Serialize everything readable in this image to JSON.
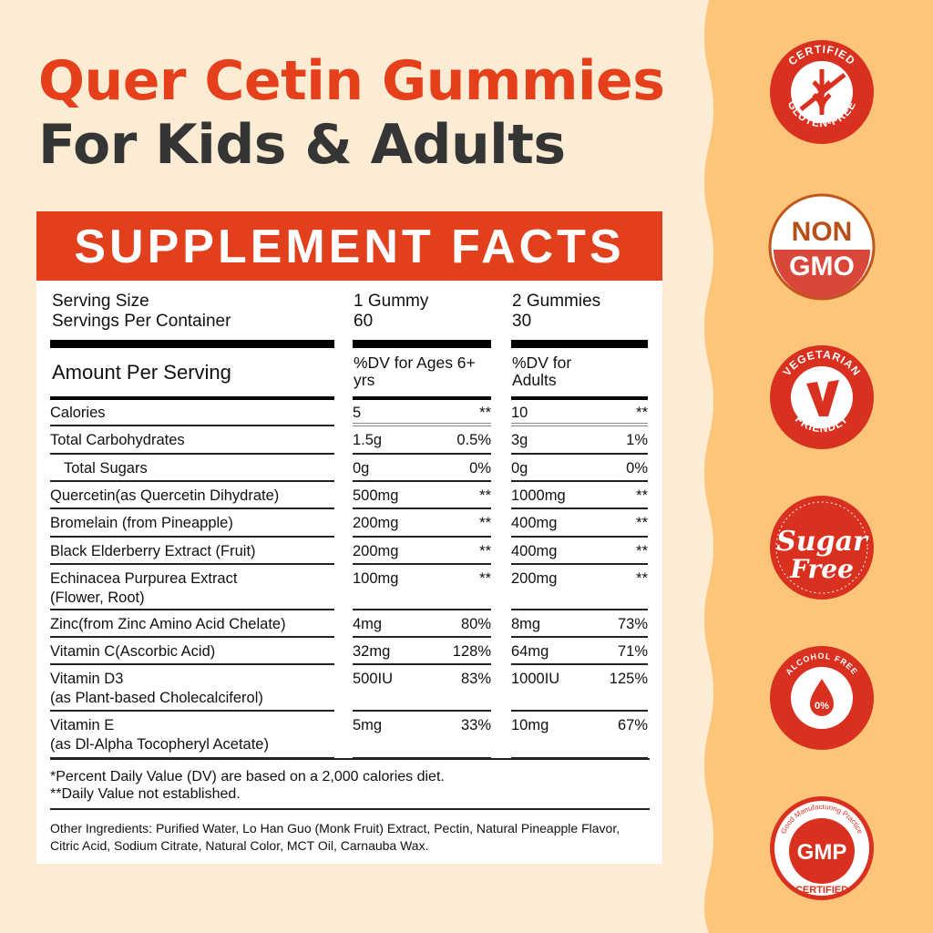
{
  "colors": {
    "accent": "#e2401d",
    "cream": "#fdecd4",
    "orange": "#fdc57a",
    "dark": "#353535"
  },
  "title": {
    "line1": "Quer Cetin Gummies",
    "line2": "For Kids & Adults"
  },
  "facts": {
    "header": "SUPPLEMENT FACTS",
    "serving_size_label": "Serving Size",
    "servings_label": "Servings Per Container",
    "kids_serving": "1 Gummy",
    "kids_servings": "60",
    "adult_serving": "2 Gummies",
    "adult_servings": "30",
    "amount_label": "Amount Per Serving",
    "kids_dv_label": "%DV for Ages 6+ yrs",
    "adult_dv_label": "%DV for Adults",
    "rows": [
      {
        "name": "Calories",
        "k": "5",
        "kdv": "**",
        "a": "10",
        "adv": "**"
      },
      {
        "name": "Total Carbohydrates",
        "k": "1.5g",
        "kdv": "0.5%",
        "a": "3g",
        "adv": "1%"
      },
      {
        "name": "Total Sugars",
        "k": "0g",
        "kdv": "0%",
        "a": "0g",
        "adv": "0%"
      },
      {
        "name": "Quercetin(as Quercetin Dihydrate)",
        "k": "500mg",
        "kdv": "**",
        "a": "1000mg",
        "adv": "**"
      },
      {
        "name": "Bromelain (from Pineapple)",
        "k": "200mg",
        "kdv": "**",
        "a": "400mg",
        "adv": "**"
      },
      {
        "name": "Black Elderberry Extract (Fruit)",
        "k": "200mg",
        "kdv": "**",
        "a": "400mg",
        "adv": "**"
      },
      {
        "name": "Echinacea Purpurea Extract",
        "sub": "(Flower, Root)",
        "k": "100mg",
        "kdv": "**",
        "a": "200mg",
        "adv": "**"
      },
      {
        "name": "Zinc(from Zinc Amino Acid Chelate)",
        "k": "4mg",
        "kdv": "80%",
        "a": "8mg",
        "adv": "73%"
      },
      {
        "name": "Vitamin C(Ascorbic Acid)",
        "k": "32mg",
        "kdv": "128%",
        "a": "64mg",
        "adv": "71%"
      },
      {
        "name": "Vitamin D3",
        "sub": "(as Plant-based Cholecalciferol)",
        "k": "500IU",
        "kdv": "83%",
        "a": "1000IU",
        "adv": "125%"
      },
      {
        "name": "Vitamin E",
        "sub": "(as Dl-Alpha Tocopheryl Acetate)",
        "k": "5mg",
        "kdv": "33%",
        "a": "10mg",
        "adv": "67%"
      }
    ],
    "footnote1": "*Percent Daily Value (DV) are based on a 2,000 calories diet.",
    "footnote2": "**Daily Value not established.",
    "ingredients": "Other Ingredients: Purified Water, Lo Han Guo (Monk Fruit) Extract, Pectin, Natural Pineapple Flavor, Citric Acid, Sodium Citrate, Natural Color, MCT Oil, Carnauba Wax."
  },
  "badges": [
    {
      "icon": "gluten-free-icon",
      "top": "CERTIFIED",
      "bottom": "GLUTEN-FREE"
    },
    {
      "icon": "non-gmo-icon",
      "top": "NON",
      "bottom": "GMO"
    },
    {
      "icon": "vegetarian-icon",
      "top": "VEGETARIAN",
      "bottom": "FRIENDLY"
    },
    {
      "icon": "sugar-free-icon",
      "top": "Sugar",
      "bottom": "Free"
    },
    {
      "icon": "alcohol-free-icon",
      "top": "ALCOHOL FREE",
      "bottom": "0%"
    },
    {
      "icon": "gmp-icon",
      "top": "Good Manufacturing Practice",
      "mid": "GMP",
      "bottom": "CERTIFIED"
    }
  ]
}
